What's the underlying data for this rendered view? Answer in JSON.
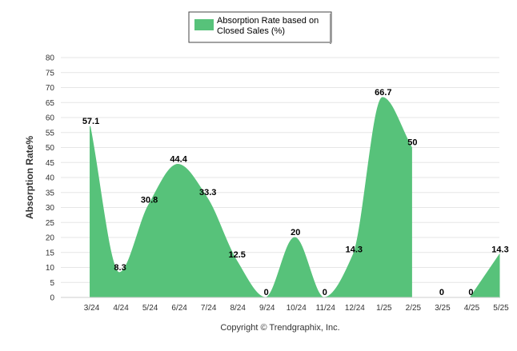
{
  "chart_data": {
    "type": "area",
    "title": "",
    "ylabel": "Absorption Rate%",
    "xlabel": "",
    "ylim": [
      0,
      80
    ],
    "y_ticks": [
      0,
      5,
      10,
      15,
      20,
      25,
      30,
      35,
      40,
      45,
      50,
      55,
      60,
      65,
      70,
      75,
      80
    ],
    "grid": true,
    "legend_position": "top-center",
    "categories": [
      "3/24",
      "4/24",
      "5/24",
      "6/24",
      "7/24",
      "8/24",
      "9/24",
      "10/24",
      "11/24",
      "12/24",
      "1/25",
      "2/25",
      "3/25",
      "4/25",
      "5/25"
    ],
    "series": [
      {
        "name": "Absorption Rate based on Closed Sales (%)",
        "color": "#57c27a",
        "values": [
          57.1,
          8.3,
          30.8,
          44.4,
          33.3,
          12.5,
          0,
          20,
          0,
          14.3,
          66.7,
          50,
          0,
          0,
          14.3
        ],
        "segments": [
          [
            0,
            11
          ],
          [
            13,
            14
          ]
        ]
      }
    ],
    "data_labels": [
      "57.1",
      "8.3",
      "30.8",
      "44.4",
      "33.3",
      "12.5",
      "0",
      "20",
      "0",
      "14.3",
      "66.7",
      "50",
      "0",
      "0",
      "14.3"
    ]
  },
  "legend": {
    "lines": [
      "Absorption Rate based on",
      "Closed Sales (%)"
    ]
  },
  "footer": {
    "copyright": "Copyright © Trendgraphix, Inc."
  }
}
